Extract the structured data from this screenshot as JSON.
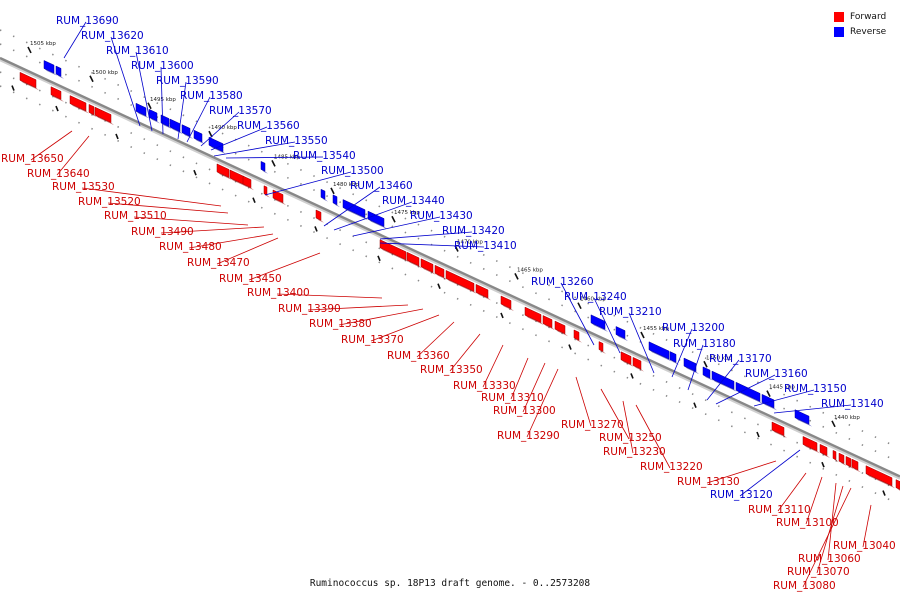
{
  "title": "Ruminococcus sp. 18P13 draft genome. - 0..2573208",
  "legend": [
    {
      "label": "Forward",
      "color": "#ff0000"
    },
    {
      "label": "Reverse",
      "color": "#0000ff"
    }
  ],
  "colors": {
    "forward": "#ff0000",
    "forward_dark": "#990000",
    "reverse": "#0000ff",
    "reverse_dark": "#000099",
    "backbone": "#888888"
  },
  "scale_ticks": [
    "1505 kbp",
    "1500 kbp",
    "1495 kbp",
    "1490 kbp",
    "1485 kbp",
    "1480 kbp",
    "1475 kbp",
    "1470 kbp",
    "1465 kbp",
    "1460 kbp",
    "1455 kbp",
    "1450 kbp",
    "1445 kbp",
    "1440 kbp"
  ],
  "reverse_genes": [
    "RUM_13690",
    "RUM_13620",
    "RUM_13610",
    "RUM_13600",
    "RUM_13590",
    "RUM_13580",
    "RUM_13570",
    "RUM_13560",
    "RUM_13550",
    "RUM_13540",
    "RUM_13500",
    "RUM_13460",
    "RUM_13440",
    "RUM_13430",
    "RUM_13420",
    "RUM_13410",
    "RUM_13260",
    "RUM_13240",
    "RUM_13210",
    "RUM_13200",
    "RUM_13180",
    "RUM_13170",
    "RUM_13160",
    "RUM_13150",
    "RUM_13140",
    "RUM_13120"
  ],
  "forward_genes": [
    "RUM_13650",
    "RUM_13640",
    "RUM_13530",
    "RUM_13520",
    "RUM_13510",
    "RUM_13490",
    "RUM_13480",
    "RUM_13470",
    "RUM_13450",
    "RUM_13400",
    "RUM_13390",
    "RUM_13380",
    "RUM_13370",
    "RUM_13360",
    "RUM_13350",
    "RUM_13330",
    "RUM_13310",
    "RUM_13300",
    "RUM_13290",
    "RUM_13270",
    "RUM_13250",
    "RUM_13230",
    "RUM_13220",
    "RUM_13130",
    "RUM_13110",
    "RUM_13100",
    "RUM_13060",
    "RUM_13070",
    "RUM_13080",
    "RUM_13040"
  ]
}
